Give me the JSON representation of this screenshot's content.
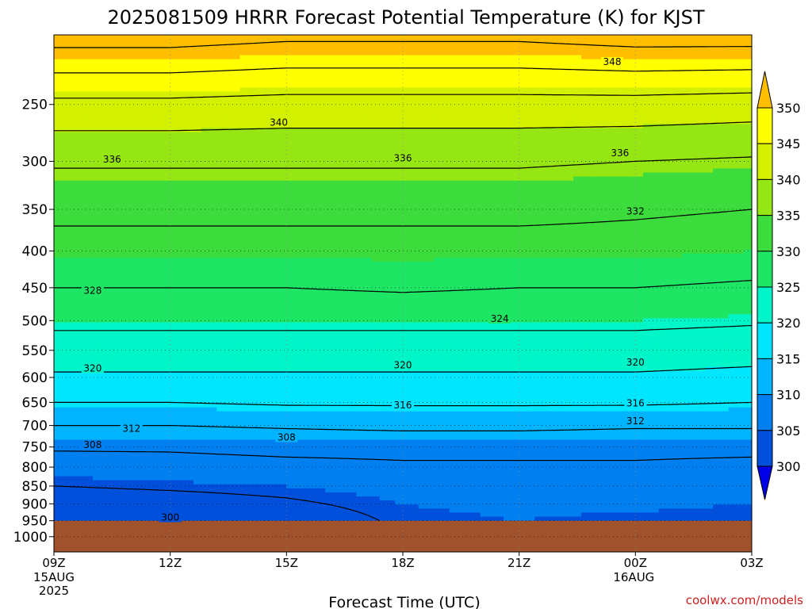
{
  "title": "2025081509 HRRR Forecast Potential Temperature (K) for KJST",
  "credit": "coolwx.com/models",
  "chart_data": {
    "type": "heatmap",
    "title": "2025081509 HRRR Forecast Potential Temperature (K) for KJST",
    "xlabel": "Forecast Time (UTC)",
    "ylabel": "",
    "x_ticks": [
      {
        "label": "09Z",
        "sub": [
          "15AUG",
          "2025"
        ],
        "hour": 0
      },
      {
        "label": "12Z",
        "sub": [],
        "hour": 3
      },
      {
        "label": "15Z",
        "sub": [],
        "hour": 6
      },
      {
        "label": "18Z",
        "sub": [],
        "hour": 9
      },
      {
        "label": "21Z",
        "sub": [],
        "hour": 12
      },
      {
        "label": "00Z",
        "sub": [
          "16AUG"
        ],
        "hour": 15
      },
      {
        "label": "03Z",
        "sub": [],
        "hour": 18
      }
    ],
    "xlim_hours": [
      0,
      18
    ],
    "y_scale": "log-pressure",
    "y_ticks": [
      250,
      300,
      350,
      400,
      450,
      500,
      550,
      600,
      650,
      700,
      750,
      800,
      850,
      900,
      950,
      1000
    ],
    "ylim_hPa": [
      200,
      1050
    ],
    "ground_level_hPa": 950,
    "ground_color": "#a0522d",
    "grid": true,
    "colorbar": {
      "levels": [
        300,
        305,
        310,
        315,
        320,
        325,
        330,
        335,
        340,
        345,
        350
      ],
      "colors": [
        "#0000e6",
        "#0050dc",
        "#0080f0",
        "#00b4ff",
        "#00e6ff",
        "#00f5c8",
        "#1ee664",
        "#3cdc3c",
        "#96e614",
        "#d2f000",
        "#ffff00",
        "#ffbe00"
      ],
      "extend": "both"
    },
    "contour_interval": 4,
    "contour_profiles": [
      {
        "hour": 0,
        "points": [
          [
            200,
            354
          ],
          [
            250,
            343
          ],
          [
            300,
            336.5
          ],
          [
            350,
            333
          ],
          [
            400,
            330.5
          ],
          [
            450,
            328
          ],
          [
            500,
            325
          ],
          [
            550,
            322
          ],
          [
            600,
            319.5
          ],
          [
            650,
            316
          ],
          [
            700,
            312
          ],
          [
            750,
            308.5
          ],
          [
            800,
            306
          ],
          [
            850,
            304
          ],
          [
            900,
            302
          ],
          [
            950,
            300
          ]
        ]
      },
      {
        "hour": 3,
        "points": [
          [
            200,
            354
          ],
          [
            250,
            343
          ],
          [
            300,
            336.5
          ],
          [
            350,
            333
          ],
          [
            400,
            330.5
          ],
          [
            450,
            328
          ],
          [
            500,
            325
          ],
          [
            550,
            322
          ],
          [
            600,
            319.5
          ],
          [
            650,
            316
          ],
          [
            700,
            312
          ],
          [
            750,
            308.5
          ],
          [
            800,
            306.5
          ],
          [
            850,
            304.5
          ],
          [
            900,
            302.5
          ],
          [
            950,
            300.5
          ]
        ]
      },
      {
        "hour": 6,
        "points": [
          [
            200,
            353
          ],
          [
            250,
            342.5
          ],
          [
            300,
            336.5
          ],
          [
            350,
            333
          ],
          [
            400,
            330.5
          ],
          [
            450,
            328
          ],
          [
            500,
            325
          ],
          [
            550,
            322
          ],
          [
            600,
            319.5
          ],
          [
            650,
            316.5
          ],
          [
            700,
            312.5
          ],
          [
            750,
            309
          ],
          [
            800,
            307
          ],
          [
            850,
            305
          ],
          [
            900,
            303.5
          ],
          [
            950,
            302
          ]
        ]
      },
      {
        "hour": 9,
        "points": [
          [
            200,
            353
          ],
          [
            250,
            342.5
          ],
          [
            300,
            336.5
          ],
          [
            350,
            333
          ],
          [
            400,
            330.5
          ],
          [
            450,
            328.5
          ],
          [
            500,
            325
          ],
          [
            550,
            322
          ],
          [
            600,
            319.5
          ],
          [
            650,
            316.5
          ],
          [
            700,
            313
          ],
          [
            750,
            309
          ],
          [
            800,
            307.5
          ],
          [
            850,
            306
          ],
          [
            900,
            305
          ],
          [
            950,
            304.5
          ]
        ]
      },
      {
        "hour": 12,
        "points": [
          [
            200,
            353
          ],
          [
            250,
            342.5
          ],
          [
            300,
            336.5
          ],
          [
            350,
            333
          ],
          [
            400,
            330.5
          ],
          [
            450,
            328
          ],
          [
            500,
            325
          ],
          [
            550,
            322
          ],
          [
            600,
            319.5
          ],
          [
            650,
            316.5
          ],
          [
            700,
            313
          ],
          [
            750,
            309
          ],
          [
            800,
            307.5
          ],
          [
            850,
            306.5
          ],
          [
            900,
            305.5
          ],
          [
            950,
            305
          ]
        ]
      },
      {
        "hour": 15,
        "points": [
          [
            200,
            354
          ],
          [
            250,
            342.5
          ],
          [
            300,
            336
          ],
          [
            350,
            332.5
          ],
          [
            400,
            330.5
          ],
          [
            450,
            328
          ],
          [
            500,
            325
          ],
          [
            550,
            322
          ],
          [
            600,
            319.5
          ],
          [
            650,
            316.5
          ],
          [
            700,
            312.5
          ],
          [
            750,
            309
          ],
          [
            800,
            307.5
          ],
          [
            850,
            306.5
          ],
          [
            900,
            305.5
          ],
          [
            950,
            304.5
          ]
        ]
      },
      {
        "hour": 18,
        "points": [
          [
            200,
            354
          ],
          [
            250,
            342
          ],
          [
            300,
            335.5
          ],
          [
            350,
            332
          ],
          [
            400,
            330
          ],
          [
            450,
            327.5
          ],
          [
            500,
            324.5
          ],
          [
            550,
            321.5
          ],
          [
            600,
            319
          ],
          [
            650,
            316
          ],
          [
            700,
            312.5
          ],
          [
            750,
            309
          ],
          [
            800,
            307
          ],
          [
            850,
            306
          ],
          [
            900,
            305
          ],
          [
            950,
            304
          ]
        ]
      }
    ],
    "contour_labels": [
      {
        "value": "348",
        "hour": 14.4,
        "hPa": 218
      },
      {
        "value": "340",
        "hour": 5.8,
        "hPa": 265
      },
      {
        "value": "336",
        "hour": 1.5,
        "hPa": 298
      },
      {
        "value": "336",
        "hour": 9.0,
        "hPa": 297
      },
      {
        "value": "336",
        "hour": 14.6,
        "hPa": 292
      },
      {
        "value": "332",
        "hour": 15.0,
        "hPa": 352
      },
      {
        "value": "328",
        "hour": 1.0,
        "hPa": 454
      },
      {
        "value": "324",
        "hour": 11.5,
        "hPa": 497
      },
      {
        "value": "320",
        "hour": 1.0,
        "hPa": 583
      },
      {
        "value": "320",
        "hour": 9.0,
        "hPa": 577
      },
      {
        "value": "320",
        "hour": 15.0,
        "hPa": 572
      },
      {
        "value": "316",
        "hour": 9.0,
        "hPa": 656
      },
      {
        "value": "316",
        "hour": 15.0,
        "hPa": 652
      },
      {
        "value": "312",
        "hour": 2.0,
        "hPa": 707
      },
      {
        "value": "312",
        "hour": 15.0,
        "hPa": 690
      },
      {
        "value": "308",
        "hour": 1.0,
        "hPa": 745
      },
      {
        "value": "308",
        "hour": 6.0,
        "hPa": 727
      },
      {
        "value": "300",
        "hour": 3.0,
        "hPa": 940
      }
    ]
  }
}
